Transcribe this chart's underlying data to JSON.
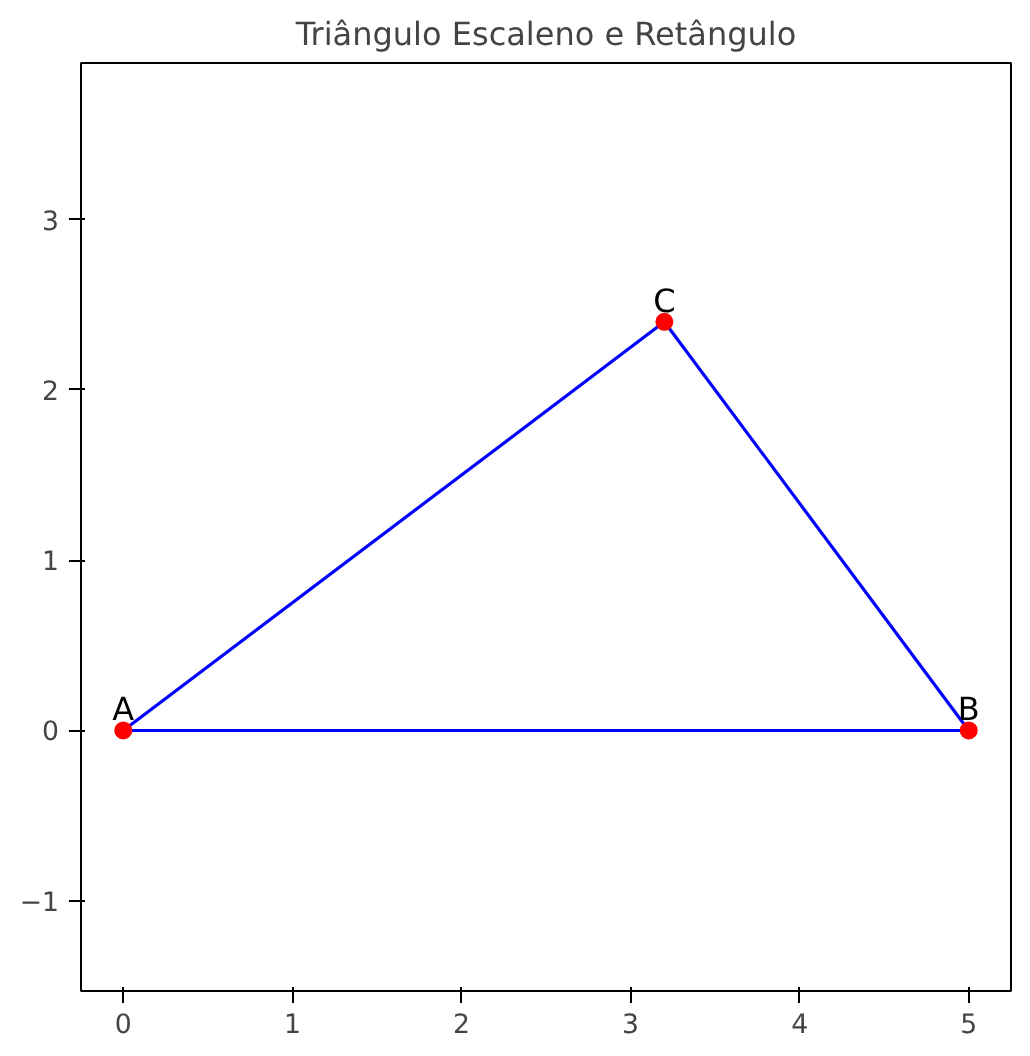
{
  "chart_data": {
    "type": "line",
    "title": "Triângulo Escaleno e Retângulo",
    "series": [
      {
        "color": "#0000ff",
        "x": [
          0,
          5
        ],
        "values": [
          0,
          0
        ],
        "marker": "none"
      },
      {
        "color": "#0000ff",
        "x": [
          3.2,
          5
        ],
        "values": [
          2.4,
          0
        ],
        "marker": "none"
      },
      {
        "color": "#0000ff",
        "x": [
          0,
          3.2
        ],
        "values": [
          0,
          2.4
        ],
        "marker": "none"
      },
      {
        "type": "scatter",
        "color": "#ff0000",
        "x": [
          0,
          5,
          3.2
        ],
        "values": [
          0,
          0,
          2.4
        ],
        "marker": "circle"
      }
    ],
    "annotations": [
      {
        "text": "A",
        "x": 0,
        "y": 0
      },
      {
        "text": "B",
        "x": 5,
        "y": 0
      },
      {
        "text": "C",
        "x": 3.2,
        "y": 2.4
      }
    ],
    "xlim": [
      -0.25,
      5.25
    ],
    "ylim": [
      -1.53,
      3.92
    ],
    "xticks": [
      0,
      1,
      2,
      3,
      4,
      5
    ],
    "yticks": [
      {
        "value": -1,
        "label": "−1"
      },
      0,
      1,
      2,
      3
    ],
    "grid": false
  }
}
